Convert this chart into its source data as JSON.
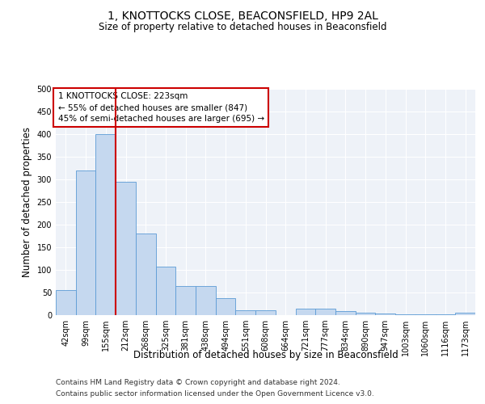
{
  "title": "1, KNOTTOCKS CLOSE, BEACONSFIELD, HP9 2AL",
  "subtitle": "Size of property relative to detached houses in Beaconsfield",
  "xlabel": "Distribution of detached houses by size in Beaconsfield",
  "ylabel": "Number of detached properties",
  "footer_line1": "Contains HM Land Registry data © Crown copyright and database right 2024.",
  "footer_line2": "Contains public sector information licensed under the Open Government Licence v3.0.",
  "categories": [
    "42sqm",
    "99sqm",
    "155sqm",
    "212sqm",
    "268sqm",
    "325sqm",
    "381sqm",
    "438sqm",
    "494sqm",
    "551sqm",
    "608sqm",
    "664sqm",
    "721sqm",
    "777sqm",
    "834sqm",
    "890sqm",
    "947sqm",
    "1003sqm",
    "1060sqm",
    "1116sqm",
    "1173sqm"
  ],
  "values": [
    55,
    320,
    400,
    295,
    180,
    107,
    65,
    65,
    37,
    10,
    10,
    0,
    15,
    15,
    9,
    5,
    4,
    2,
    1,
    1,
    5
  ],
  "bar_color": "#c5d8ef",
  "bar_edge_color": "#5b9bd5",
  "property_label": "1 KNOTTOCKS CLOSE: 223sqm",
  "annotation_line1": "← 55% of detached houses are smaller (847)",
  "annotation_line2": "45% of semi-detached houses are larger (695) →",
  "vline_color": "#cc0000",
  "vline_x": 2.5,
  "annotation_box_color": "#ffffff",
  "annotation_box_edge": "#cc0000",
  "ylim": [
    0,
    500
  ],
  "yticks": [
    0,
    50,
    100,
    150,
    200,
    250,
    300,
    350,
    400,
    450,
    500
  ],
  "bg_color": "#eef2f8",
  "grid_color": "#ffffff",
  "title_fontsize": 10,
  "subtitle_fontsize": 8.5,
  "axis_label_fontsize": 8.5,
  "tick_fontsize": 7,
  "annotation_fontsize": 7.5,
  "footer_fontsize": 6.5
}
